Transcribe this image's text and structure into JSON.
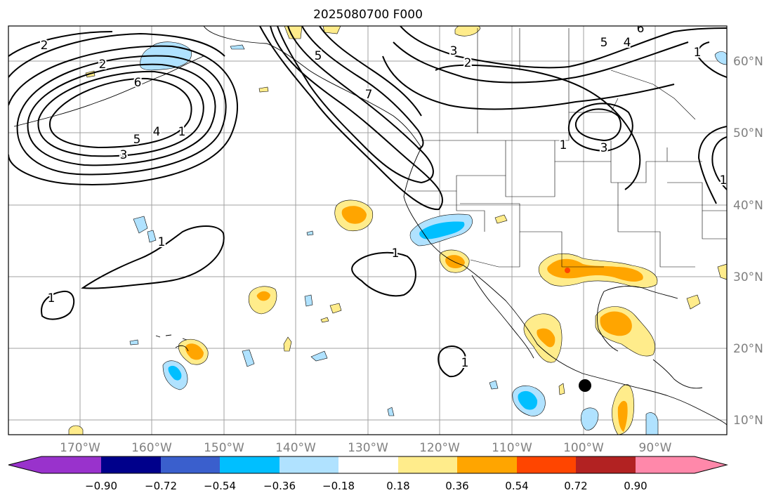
{
  "title": "2025080700 F000",
  "lon_labels": [
    "170°W",
    "160°W",
    "150°W",
    "140°W",
    "130°W",
    "120°W",
    "110°W",
    "100°W",
    "90°W"
  ],
  "lat_labels": [
    "60°N",
    "50°N",
    "40°N",
    "30°N",
    "20°N",
    "10°N"
  ],
  "contour_labels": [
    "2",
    "2",
    "6",
    "5",
    "4",
    "3",
    "1",
    "5",
    "7",
    "3",
    "2",
    "6",
    "5",
    "4",
    "1",
    "1",
    "3",
    "1",
    "1",
    "1",
    "1",
    "1"
  ],
  "colorbar": {
    "ticks": [
      "−0.90",
      "−0.72",
      "−0.54",
      "−0.36",
      "−0.18",
      "0.18",
      "0.36",
      "0.54",
      "0.72",
      "0.90"
    ],
    "colors": {
      "lt_neg_max": "#9932cc",
      "neg_090_072": "#00008b",
      "neg_072_054": "#3a5fcd",
      "neg_054_036": "#00bfff",
      "neg_036_018": "#b0e2ff",
      "neutral": "#ffffff",
      "pos_018_036": "#ffec8b",
      "pos_036_054": "#ffa500",
      "pos_054_072": "#ff4500",
      "pos_072_090": "#b22222",
      "gt_pos_max": "#ff88aa"
    }
  },
  "marker": "black-dot"
}
